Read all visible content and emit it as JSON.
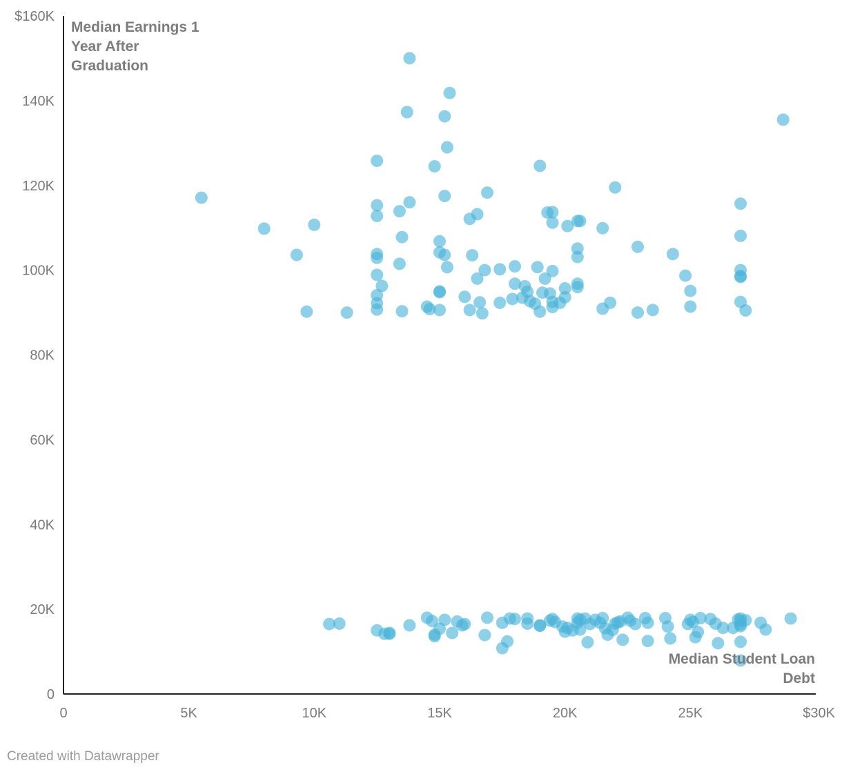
{
  "chart_data": {
    "type": "scatter",
    "title": "",
    "xlabel": "Median Student Loan Debt",
    "ylabel": "Median Earnings 1 Year After Graduation",
    "xlim": [
      0,
      30000
    ],
    "ylim": [
      0,
      160000
    ],
    "x_ticks": [
      {
        "value": 0,
        "label": "0"
      },
      {
        "value": 5000,
        "label": "5K"
      },
      {
        "value": 10000,
        "label": "10K"
      },
      {
        "value": 15000,
        "label": "15K"
      },
      {
        "value": 20000,
        "label": "20K"
      },
      {
        "value": 25000,
        "label": "25K"
      },
      {
        "value": 30000,
        "label": "$30K"
      }
    ],
    "y_ticks": [
      {
        "value": 0,
        "label": "0"
      },
      {
        "value": 20000,
        "label": "20K"
      },
      {
        "value": 40000,
        "label": "40K"
      },
      {
        "value": 60000,
        "label": "60K"
      },
      {
        "value": 80000,
        "label": "80K"
      },
      {
        "value": 100000,
        "label": "100K"
      },
      {
        "value": 120000,
        "label": "120K"
      },
      {
        "value": 140000,
        "label": "140K"
      },
      {
        "value": 160000,
        "label": "$160K"
      }
    ],
    "grid": false,
    "legend": "none",
    "point_color": "#49b3d9",
    "points": [
      [
        13800,
        150000
      ],
      [
        15400,
        141800
      ],
      [
        13700,
        137300
      ],
      [
        15200,
        136300
      ],
      [
        28700,
        135500
      ],
      [
        15300,
        129000
      ],
      [
        12500,
        125800
      ],
      [
        14800,
        124500
      ],
      [
        19000,
        124600
      ],
      [
        22000,
        119500
      ],
      [
        16900,
        118300
      ],
      [
        15200,
        117500
      ],
      [
        5500,
        117100
      ],
      [
        13800,
        116000
      ],
      [
        27000,
        115700
      ],
      [
        12500,
        115300
      ],
      [
        13400,
        113900
      ],
      [
        19300,
        113600
      ],
      [
        19500,
        113700
      ],
      [
        16500,
        113200
      ],
      [
        12500,
        112800
      ],
      [
        16200,
        112100
      ],
      [
        20500,
        111600
      ],
      [
        20600,
        111600
      ],
      [
        19500,
        111200
      ],
      [
        10000,
        110700
      ],
      [
        20100,
        110400
      ],
      [
        8000,
        109800
      ],
      [
        21500,
        109900
      ],
      [
        27000,
        108100
      ],
      [
        13500,
        107800
      ],
      [
        15000,
        106800
      ],
      [
        20500,
        105100
      ],
      [
        22900,
        105500
      ],
      [
        15000,
        104200
      ],
      [
        15200,
        103600
      ],
      [
        9300,
        103600
      ],
      [
        12500,
        103800
      ],
      [
        16300,
        103500
      ],
      [
        24300,
        103800
      ],
      [
        12500,
        102900
      ],
      [
        20500,
        103100
      ],
      [
        13400,
        101500
      ],
      [
        15300,
        100700
      ],
      [
        18900,
        100700
      ],
      [
        18000,
        100900
      ],
      [
        16800,
        100000
      ],
      [
        17400,
        100200
      ],
      [
        19500,
        99800
      ],
      [
        27000,
        100000
      ],
      [
        12500,
        98900
      ],
      [
        24800,
        98700
      ],
      [
        27000,
        98600
      ],
      [
        27000,
        98400
      ],
      [
        16500,
        98000
      ],
      [
        19200,
        98000
      ],
      [
        12700,
        96300
      ],
      [
        18000,
        96800
      ],
      [
        18400,
        96200
      ],
      [
        20500,
        96800
      ],
      [
        20500,
        96000
      ],
      [
        20000,
        95700
      ],
      [
        15000,
        95000
      ],
      [
        15000,
        94800
      ],
      [
        18500,
        94900
      ],
      [
        19100,
        94700
      ],
      [
        19400,
        94500
      ],
      [
        25000,
        95100
      ],
      [
        12500,
        94100
      ],
      [
        16000,
        93700
      ],
      [
        18300,
        93500
      ],
      [
        17900,
        93200
      ],
      [
        20000,
        93600
      ],
      [
        18600,
        92700
      ],
      [
        19500,
        92500
      ],
      [
        19800,
        92300
      ],
      [
        18800,
        92100
      ],
      [
        12500,
        92200
      ],
      [
        16600,
        92400
      ],
      [
        17400,
        92300
      ],
      [
        21800,
        92300
      ],
      [
        27000,
        92500
      ],
      [
        14500,
        91400
      ],
      [
        14600,
        90800
      ],
      [
        25000,
        91400
      ],
      [
        19500,
        91300
      ],
      [
        21500,
        90900
      ],
      [
        12500,
        90700
      ],
      [
        13500,
        90300
      ],
      [
        15000,
        90600
      ],
      [
        16200,
        90600
      ],
      [
        9700,
        90200
      ],
      [
        11300,
        90000
      ],
      [
        16700,
        89800
      ],
      [
        19000,
        90200
      ],
      [
        22900,
        90000
      ],
      [
        23500,
        90600
      ],
      [
        27200,
        90500
      ],
      [
        10600,
        16500
      ],
      [
        11000,
        16600
      ],
      [
        12500,
        15000
      ],
      [
        12800,
        14200
      ],
      [
        13000,
        14200
      ],
      [
        13000,
        14400
      ],
      [
        13800,
        16200
      ],
      [
        14500,
        18000
      ],
      [
        14700,
        17200
      ],
      [
        14800,
        14000
      ],
      [
        14800,
        13600
      ],
      [
        15000,
        15400
      ],
      [
        15200,
        17500
      ],
      [
        15500,
        14400
      ],
      [
        15700,
        17100
      ],
      [
        15900,
        16200
      ],
      [
        16000,
        16500
      ],
      [
        16800,
        13900
      ],
      [
        16900,
        18000
      ],
      [
        17500,
        10800
      ],
      [
        17500,
        16800
      ],
      [
        17700,
        12400
      ],
      [
        17800,
        17800
      ],
      [
        18000,
        17700
      ],
      [
        18500,
        16600
      ],
      [
        18500,
        17800
      ],
      [
        19000,
        16200
      ],
      [
        19000,
        16100
      ],
      [
        19400,
        17300
      ],
      [
        19500,
        17700
      ],
      [
        19600,
        17000
      ],
      [
        19900,
        15900
      ],
      [
        20000,
        14700
      ],
      [
        20100,
        15600
      ],
      [
        20300,
        15000
      ],
      [
        20500,
        17800
      ],
      [
        20500,
        16800
      ],
      [
        20600,
        17500
      ],
      [
        20600,
        15200
      ],
      [
        20800,
        17800
      ],
      [
        20900,
        12200
      ],
      [
        21000,
        16500
      ],
      [
        21200,
        17500
      ],
      [
        21400,
        16800
      ],
      [
        21500,
        17900
      ],
      [
        21600,
        15500
      ],
      [
        21700,
        14000
      ],
      [
        21900,
        15100
      ],
      [
        22000,
        16600
      ],
      [
        22100,
        16900
      ],
      [
        22200,
        17100
      ],
      [
        22300,
        12800
      ],
      [
        22500,
        18000
      ],
      [
        22600,
        17300
      ],
      [
        22800,
        16500
      ],
      [
        23200,
        17900
      ],
      [
        23300,
        16800
      ],
      [
        23300,
        12500
      ],
      [
        24000,
        17900
      ],
      [
        24100,
        15900
      ],
      [
        24200,
        13100
      ],
      [
        24900,
        16500
      ],
      [
        25000,
        17500
      ],
      [
        25100,
        17000
      ],
      [
        25200,
        13400
      ],
      [
        25300,
        14600
      ],
      [
        25400,
        17900
      ],
      [
        25800,
        17700
      ],
      [
        26000,
        16600
      ],
      [
        26100,
        12000
      ],
      [
        26300,
        15600
      ],
      [
        26700,
        15600
      ],
      [
        26900,
        17600
      ],
      [
        27000,
        17800
      ],
      [
        27000,
        17200
      ],
      [
        27000,
        16400
      ],
      [
        27000,
        16000
      ],
      [
        27000,
        12300
      ],
      [
        27000,
        7900
      ],
      [
        27200,
        17400
      ],
      [
        27800,
        16800
      ],
      [
        28000,
        15200
      ],
      [
        29000,
        17800
      ]
    ]
  },
  "footer": {
    "credit": "Created with Datawrapper"
  }
}
